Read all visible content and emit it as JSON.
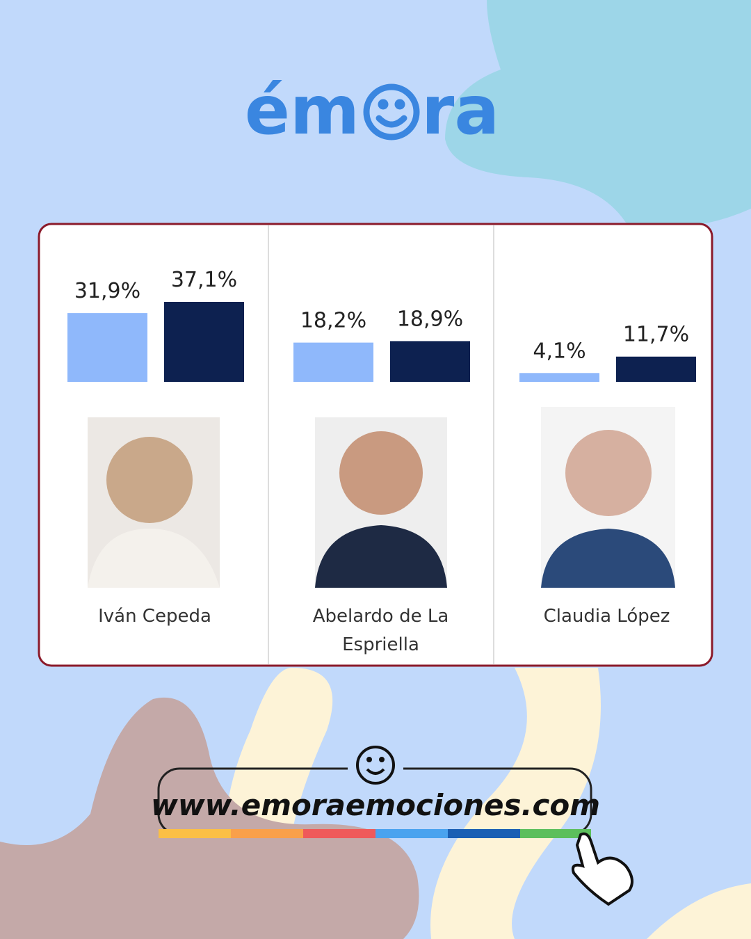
{
  "logo_parts": [
    "ém",
    "ra"
  ],
  "url": "www.emoraemociones.com",
  "chart_data": {
    "type": "bar",
    "categories": [
      "Iván Cepeda",
      "Abelardo de La Espriella",
      "Claudia López"
    ],
    "series": [
      {
        "color": "#8fb8fb",
        "values": [
          31.9,
          18.2,
          4.1
        ],
        "value_labels": [
          "31,9%",
          "18,2%",
          "4,1%"
        ]
      },
      {
        "color": "#0d2150",
        "values": [
          37.1,
          18.9,
          11.7
        ],
        "value_labels": [
          "37,1%",
          "18,9%",
          "11,7%"
        ]
      }
    ]
  }
}
